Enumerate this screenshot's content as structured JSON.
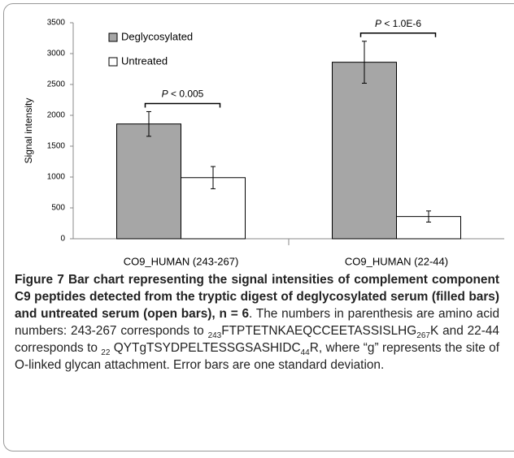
{
  "chart_data": {
    "type": "bar",
    "y_label": "Signal intensity",
    "categories": [
      "CO9_HUMAN (243-267)",
      "CO9_HUMAN (22-44)"
    ],
    "series": [
      {
        "name": "Deglycosylated",
        "color": "#a6a6a6",
        "values": [
          1860,
          2860
        ],
        "errors": [
          200,
          340
        ]
      },
      {
        "name": "Untreated",
        "color": "#ffffff",
        "values": [
          990,
          360
        ],
        "errors": [
          180,
          90
        ]
      }
    ],
    "ylim": [
      0,
      3500
    ],
    "yticks": [
      0,
      500,
      1000,
      1500,
      2000,
      2500,
      3000,
      3500
    ],
    "grid": false,
    "legend": "top-left",
    "annotations": [
      {
        "symbol": "P",
        "text": "< 0.005"
      },
      {
        "symbol": "P",
        "text": "< 1.0E-6"
      }
    ]
  },
  "caption": {
    "parts": [
      {
        "style": "bold",
        "text": "Figure 7 Bar chart representing the signal intensities of complement component C9 peptides detected from the tryptic digest of deglycosylated serum (filled bars) and untreated serum (open bars), n = 6"
      },
      {
        "style": "normal",
        "text": ". The numbers in parenthesis are amino acid numbers: 243-267 corresponds to "
      },
      {
        "style": "sub",
        "text": "243"
      },
      {
        "style": "normal",
        "text": "FTPTETNKAEQCCEETASSISLHG"
      },
      {
        "style": "sub",
        "text": "267"
      },
      {
        "style": "normal",
        "text": "K and 22-44 corresponds to "
      },
      {
        "style": "sub",
        "text": "22"
      },
      {
        "style": "normal",
        "text": " QYTgTSYDPELTESSGSASHIDC"
      },
      {
        "style": "sub",
        "text": "44"
      },
      {
        "style": "normal",
        "text": "R, where “g” represents the site of O-linked glycan attachment. Error bars are one standard deviation."
      }
    ]
  }
}
